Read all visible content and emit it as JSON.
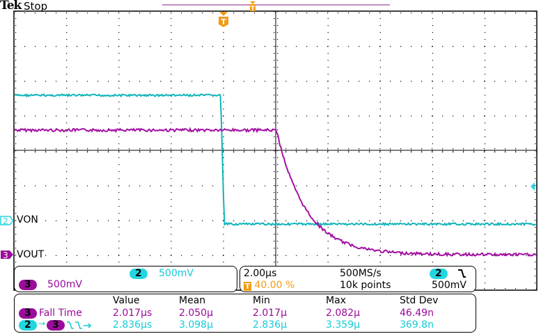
{
  "header": {
    "brand": "Tek",
    "status": "Stop"
  },
  "colors": {
    "ch2": "#22d6e0",
    "ch3": "#9b0c9b",
    "trigger": "#f39b13",
    "record_bar": "#8a1a8a"
  },
  "icons": {
    "trigger_marker": "T-flag-icon",
    "ch2_level_arrow": "left-arrow-icon",
    "falling_edge": "falling-edge-icon"
  },
  "channels": [
    {
      "number": "2",
      "label": "VON",
      "scale": "500mV"
    },
    {
      "number": "3",
      "label": "VOUT",
      "scale": "500mV"
    }
  ],
  "horizontal": {
    "time_per_div": "2.00µs",
    "trigger_position": "40.00 %",
    "sample_rate": "500MS/s",
    "record_length": "10k points"
  },
  "trigger": {
    "source": "2",
    "slope": "falling",
    "level": "500mV",
    "marker": "T"
  },
  "measurements": {
    "headers": [
      "Value",
      "Mean",
      "Min",
      "Max",
      "Std Dev"
    ],
    "rows": [
      {
        "source": "3",
        "name": "Fall Time",
        "values": [
          "2.017µs",
          "2.050µ",
          "2.017µ",
          "2.082µ",
          "46.49n"
        ]
      },
      {
        "source": "2",
        "target": "3",
        "name": "Delay",
        "values": [
          "2.836µs",
          "3.098µ",
          "2.836µ",
          "3.359µ",
          "369.8n"
        ]
      }
    ]
  }
}
